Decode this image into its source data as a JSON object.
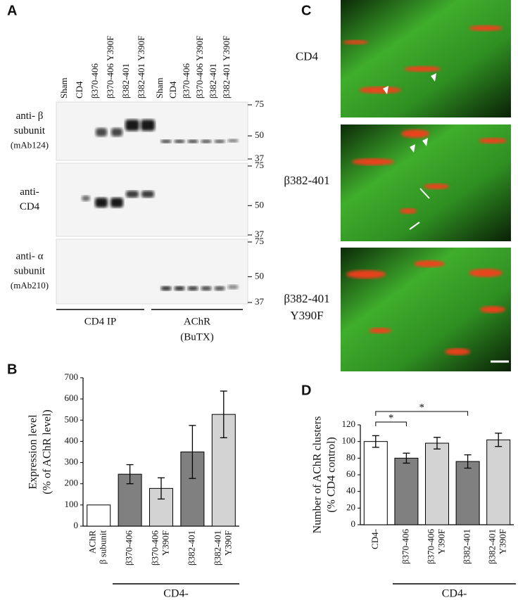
{
  "panel_labels": [
    "A",
    "B",
    "C",
    "D"
  ],
  "blot": {
    "lanes": [
      "Sham",
      "CD4",
      "β370-406",
      "β370-406 Y390F",
      "β382-401",
      "β382-401 Y390F",
      "Sham",
      "CD4",
      "β370-406",
      "β370-406 Y390F",
      "β382-401",
      "β382-401 Y390F"
    ],
    "rows": [
      {
        "label_lines": [
          "anti- β",
          "subunit",
          "(mAb124)"
        ],
        "mw_markers": [
          75,
          50,
          37
        ]
      },
      {
        "label_lines": [
          "anti-",
          "CD4"
        ],
        "mw_markers": [
          75,
          50,
          37
        ]
      },
      {
        "label_lines": [
          "anti- α",
          "subunit",
          "(mAb210)"
        ],
        "mw_markers": [
          75,
          50,
          37
        ]
      }
    ],
    "groups": [
      {
        "label_lines": [
          "CD4 IP"
        ]
      },
      {
        "label_lines": [
          "AChR",
          "(BuTX)"
        ]
      }
    ]
  },
  "images": {
    "rows": [
      {
        "label_lines": [
          "CD4"
        ]
      },
      {
        "label_lines": [
          "β382-401"
        ]
      },
      {
        "label_lines": [
          "β382-401",
          "Y390F"
        ]
      }
    ]
  },
  "chart_data": [
    {
      "type": "bar",
      "ylabel_lines": [
        "Expression level",
        "(% of AChR level)"
      ],
      "categories": [
        [
          "AChR",
          "β subunit"
        ],
        [
          "β370-406"
        ],
        [
          "β370-406",
          "Y390F"
        ],
        [
          "β382-401"
        ],
        [
          "β382-401",
          "Y390F"
        ]
      ],
      "values": [
        100,
        245,
        178,
        350,
        527
      ],
      "errors": [
        0,
        45,
        50,
        125,
        110
      ],
      "colors": [
        "#ffffff",
        "#808080",
        "#d3d3d3",
        "#808080",
        "#d3d3d3"
      ],
      "ylim": [
        0,
        700
      ],
      "yticks": [
        0,
        100,
        200,
        300,
        400,
        500,
        600,
        700
      ],
      "group_label": "CD4-",
      "brackets": []
    },
    {
      "type": "bar",
      "ylabel_lines": [
        "Number of AChR clusters",
        "(% CD4 control)"
      ],
      "categories": [
        [
          "CD4-"
        ],
        [
          "β370-406"
        ],
        [
          "β370-406",
          "Y390F"
        ],
        [
          "β382-401"
        ],
        [
          "β382-401",
          "Y390F"
        ]
      ],
      "values": [
        100,
        80,
        98,
        76,
        102
      ],
      "errors": [
        7,
        6,
        7,
        8,
        8
      ],
      "colors": [
        "#ffffff",
        "#808080",
        "#d3d3d3",
        "#808080",
        "#d3d3d3"
      ],
      "ylim": [
        0,
        120
      ],
      "yticks": [
        0,
        20,
        40,
        60,
        80,
        100,
        120
      ],
      "group_label": "CD4-",
      "brackets": [
        {
          "label": "*",
          "categories": [
            0,
            1
          ]
        },
        {
          "label": "*",
          "categories": [
            0,
            3
          ]
        }
      ]
    }
  ]
}
